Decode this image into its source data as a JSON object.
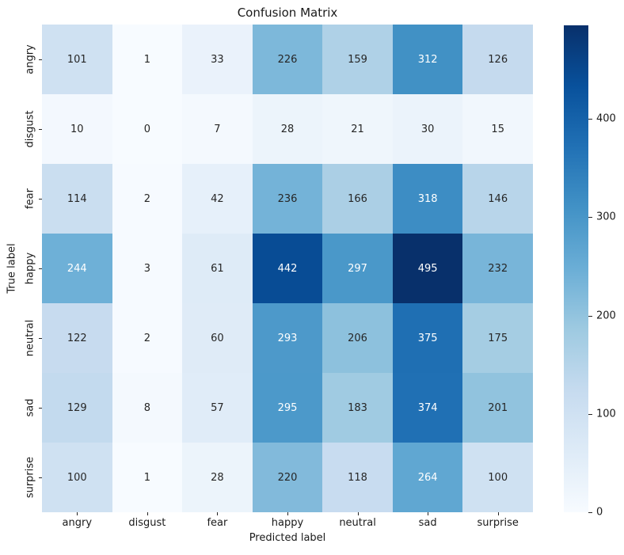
{
  "chart_data": {
    "type": "heatmap",
    "title": "Confusion Matrix",
    "xlabel": "Predicted label",
    "ylabel": "True label",
    "categories": [
      "angry",
      "disgust",
      "fear",
      "happy",
      "neutral",
      "sad",
      "surprise"
    ],
    "matrix": [
      [
        101,
        1,
        33,
        226,
        159,
        312,
        126
      ],
      [
        10,
        0,
        7,
        28,
        21,
        30,
        15
      ],
      [
        114,
        2,
        42,
        236,
        166,
        318,
        146
      ],
      [
        244,
        3,
        61,
        442,
        297,
        495,
        232
      ],
      [
        122,
        2,
        60,
        293,
        206,
        375,
        175
      ],
      [
        129,
        8,
        57,
        295,
        183,
        374,
        201
      ],
      [
        100,
        1,
        28,
        220,
        118,
        264,
        100
      ]
    ],
    "vmin": 0,
    "vmax": 495,
    "colormap": {
      "name": "Blues",
      "anchors": [
        "#f7fbff",
        "#deebf7",
        "#c6dbef",
        "#9ecae1",
        "#6baed6",
        "#4292c6",
        "#2171b5",
        "#08519c",
        "#08306b"
      ]
    },
    "colorbar_ticks": [
      0,
      100,
      200,
      300,
      400
    ],
    "annotation_colors": {
      "light": "#ffffff",
      "dark": "#262626"
    },
    "grid": "off",
    "legend_position": "colorbar-right"
  }
}
